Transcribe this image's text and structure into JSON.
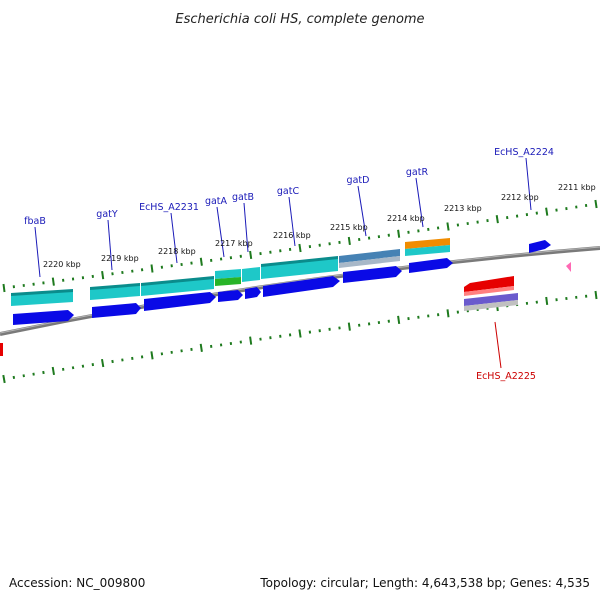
{
  "title": "Escherichia coli HS, complete genome",
  "footer": {
    "accession": "Accession: NC_009800",
    "summary": "Topology: circular; Length: 4,643,538 bp; Genes: 4,535"
  },
  "ticks": [
    "2220 kbp",
    "2219 kbp",
    "2218 kbp",
    "2217 kbp",
    "2216 kbp",
    "2215 kbp",
    "2214 kbp",
    "2213 kbp",
    "2212 kbp",
    "2211 kbp"
  ],
  "gene_labels": [
    {
      "name": "fbaB",
      "strand": "forward"
    },
    {
      "name": "gatY",
      "strand": "forward"
    },
    {
      "name": "EcHS_A2231",
      "strand": "forward"
    },
    {
      "name": "gatA",
      "strand": "forward"
    },
    {
      "name": "gatB",
      "strand": "forward"
    },
    {
      "name": "gatC",
      "strand": "forward"
    },
    {
      "name": "gatD",
      "strand": "forward"
    },
    {
      "name": "gatR",
      "strand": "forward"
    },
    {
      "name": "EcHS_A2224",
      "strand": "forward"
    },
    {
      "name": "EcHS_A2225",
      "strand": "reverse"
    }
  ],
  "colors": {
    "backbone": "#808080",
    "tick": "#1e7a1e",
    "cds": "#0a0ae6",
    "cds_light": "#3c3cf0",
    "cyan": "#1ec8c8",
    "cyan_dark": "#0a8c8c",
    "green": "#28b428",
    "orange": "#f08c00",
    "steel": "#4682b4",
    "red": "#e60000",
    "purple": "#6a5acd",
    "pink": "#ff69b4",
    "label_blue": "#1a1ab8",
    "label_red": "#cc0000"
  }
}
